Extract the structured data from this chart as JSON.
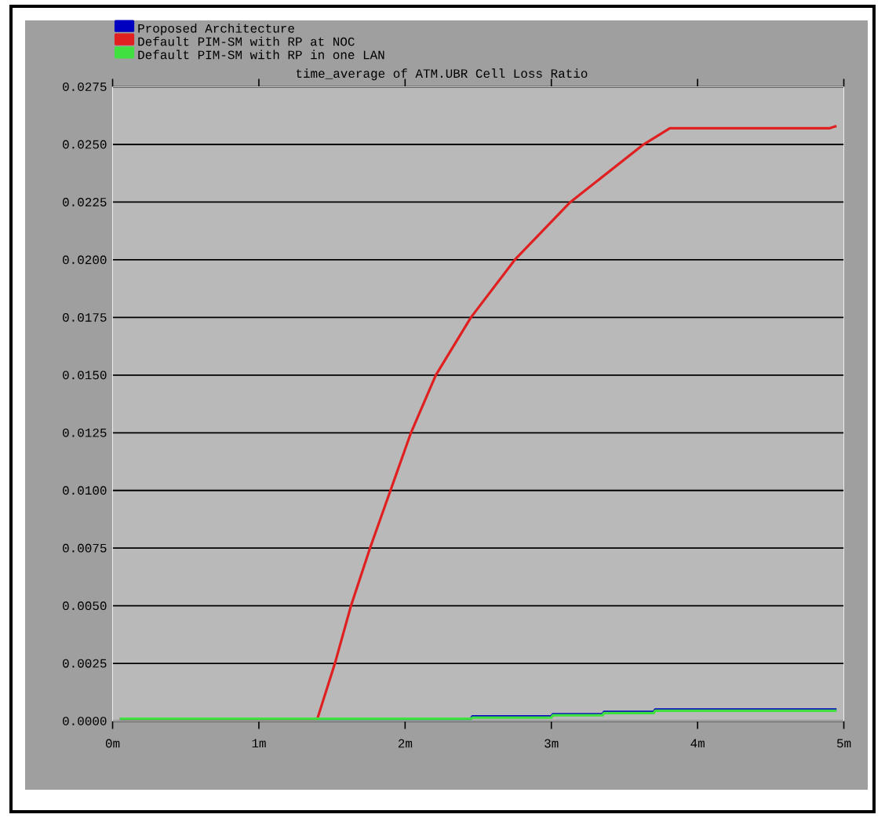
{
  "chart_data": {
    "type": "line",
    "title": "time_average of ATM.UBR Cell Loss Ratio",
    "xlim": [
      0,
      5
    ],
    "ylim": [
      0,
      0.0275
    ],
    "xticks": [
      {
        "value": 0,
        "label": "0m"
      },
      {
        "value": 1,
        "label": "1m"
      },
      {
        "value": 2,
        "label": "2m"
      },
      {
        "value": 3,
        "label": "3m"
      },
      {
        "value": 4,
        "label": "4m"
      },
      {
        "value": 5,
        "label": "5m"
      }
    ],
    "yticks": [
      {
        "value": 0,
        "label": "0.0000"
      },
      {
        "value": 0.0025,
        "label": "0.0025"
      },
      {
        "value": 0.005,
        "label": "0.0050"
      },
      {
        "value": 0.0075,
        "label": "0.0075"
      },
      {
        "value": 0.01,
        "label": "0.0100"
      },
      {
        "value": 0.0125,
        "label": "0.0125"
      },
      {
        "value": 0.015,
        "label": "0.0150"
      },
      {
        "value": 0.0175,
        "label": "0.0175"
      },
      {
        "value": 0.02,
        "label": "0.0200"
      },
      {
        "value": 0.0225,
        "label": "0.0225"
      },
      {
        "value": 0.025,
        "label": "0.0250"
      },
      {
        "value": 0.0275,
        "label": "0.0275"
      }
    ],
    "grid": "y",
    "legend": "top left",
    "marker": "none",
    "line_style": "solid",
    "series": [
      {
        "name": "Proposed Architecture",
        "color": "#0000c0",
        "x": [
          0.05,
          2.45,
          2.46,
          3.0,
          3.01,
          3.35,
          3.36,
          3.7,
          3.71,
          4.95
        ],
        "values": [
          0.0001,
          0.0001,
          0.0002,
          0.0002,
          0.0003,
          0.0003,
          0.0004,
          0.0004,
          0.0005,
          0.0005
        ]
      },
      {
        "name": "Default PIM-SM with RP at NOC",
        "color": "#e02020",
        "x": [
          0.05,
          1.4,
          1.52,
          1.63,
          1.76,
          1.9,
          2.04,
          2.21,
          2.45,
          2.75,
          3.13,
          3.63,
          3.81,
          4.9,
          4.95
        ],
        "values": [
          0.0001,
          0.0001,
          0.0025,
          0.005,
          0.0075,
          0.01,
          0.0125,
          0.015,
          0.0175,
          0.02,
          0.0225,
          0.025,
          0.0257,
          0.0257,
          0.0258
        ]
      },
      {
        "name": "Default PIM-SM with RP in one LAN",
        "color": "#40e040",
        "x": [
          0.05,
          2.45,
          2.46,
          3.0,
          3.01,
          3.35,
          3.36,
          3.7,
          3.71,
          4.95
        ],
        "values": [
          0.0001,
          0.0001,
          0.00015,
          0.00015,
          0.00025,
          0.00025,
          0.00035,
          0.00035,
          0.00045,
          0.00045
        ]
      }
    ]
  }
}
